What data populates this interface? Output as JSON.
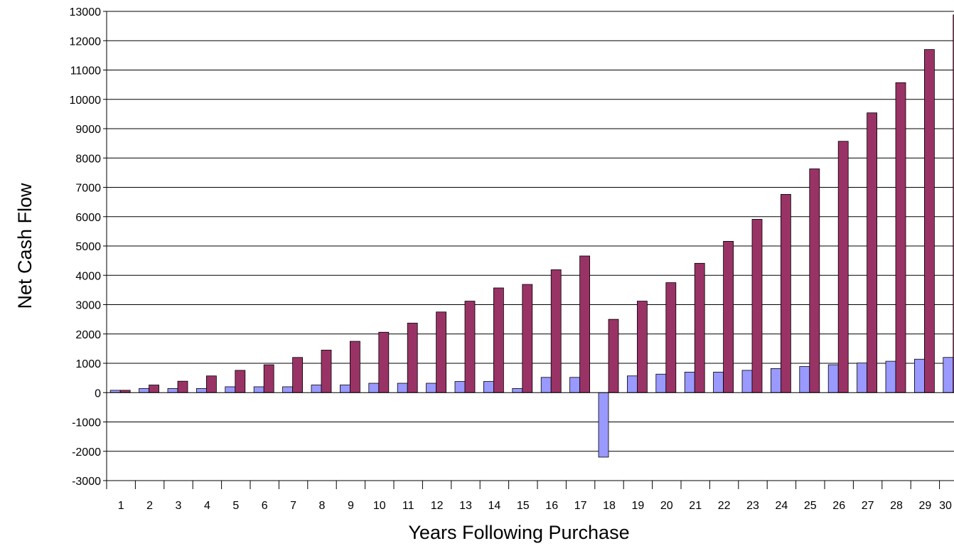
{
  "chart_data": {
    "type": "bar",
    "title": "",
    "xlabel": "Years Following Purchase",
    "ylabel": "Net Cash Flow",
    "ylim": [
      -3000,
      13000
    ],
    "yticks": [
      -3000,
      -2000,
      -1000,
      0,
      1000,
      2000,
      3000,
      4000,
      5000,
      6000,
      7000,
      8000,
      9000,
      10000,
      11000,
      12000,
      13000
    ],
    "grid": true,
    "legend": "none",
    "categories": [
      "1",
      "2",
      "3",
      "4",
      "5",
      "6",
      "7",
      "8",
      "9",
      "10",
      "11",
      "12",
      "13",
      "14",
      "15",
      "16",
      "17",
      "18",
      "19",
      "20",
      "21",
      "22",
      "23",
      "24",
      "25",
      "26",
      "27",
      "28",
      "29",
      "30"
    ],
    "series": [
      {
        "color": "#9999ff",
        "values": [
          80,
          140,
          140,
          140,
          200,
          200,
          200,
          260,
          260,
          320,
          320,
          320,
          380,
          380,
          140,
          520,
          520,
          -2200,
          570,
          630,
          700,
          700,
          760,
          820,
          890,
          950,
          1010,
          1070,
          1140,
          1200
        ]
      },
      {
        "color": "#993366",
        "values": [
          80,
          260,
          390,
          570,
          760,
          950,
          1200,
          1450,
          1750,
          2060,
          2370,
          2750,
          3120,
          3570,
          3690,
          4190,
          4660,
          2500,
          3120,
          3750,
          4410,
          5160,
          5910,
          6760,
          7630,
          8570,
          9540,
          10570,
          11700,
          12880
        ]
      }
    ]
  }
}
